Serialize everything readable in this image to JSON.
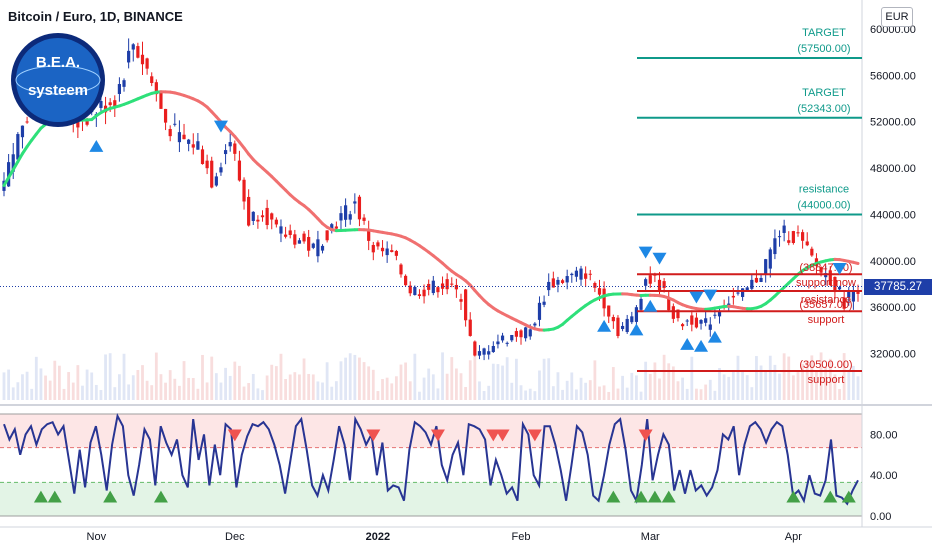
{
  "header": {
    "title": "Bitcoin / Euro, 1D, BINANCE",
    "currency_button": "EUR",
    "current_price_label": "37785.27"
  },
  "logo": {
    "line1": "B.E.A.",
    "line2": "systeem"
  },
  "colors": {
    "up": "#26a69a",
    "down": "#ef5350",
    "candle_up": "#1e3ea8",
    "candle_down": "#e91e1e",
    "ma_up": "#2ee07a",
    "ma_down": "#f07070",
    "target": "#0f9a8a",
    "support": "#d11c1c",
    "oscillator": "#283593"
  },
  "chart_data": {
    "type": "candlestick",
    "title": "Bitcoin / Euro, 1D, BINANCE",
    "price_axis": {
      "ticks": [
        60000,
        56000,
        52000,
        48000,
        44000,
        40000,
        36000,
        32000
      ],
      "tick_labels": [
        "60000.00",
        "56000.00",
        "52000.00",
        "48000.00",
        "44000.00",
        "40000.00",
        "36000.00",
        "32000.00"
      ],
      "range": [
        28000,
        62500
      ]
    },
    "time_axis": {
      "labels": [
        "Nov",
        "Dec",
        "2022",
        "Feb",
        "Mar",
        "Apr"
      ],
      "start": "2021-10-12",
      "end": "2022-04-15"
    },
    "close_path": [
      [
        "2021-10-12",
        46500
      ],
      [
        "2021-10-16",
        52000
      ],
      [
        "2021-10-20",
        55500
      ],
      [
        "2021-10-24",
        52500
      ],
      [
        "2021-10-28",
        52000
      ],
      [
        "2021-11-01",
        53000
      ],
      [
        "2021-11-05",
        54000
      ],
      [
        "2021-11-09",
        58800
      ],
      [
        "2021-11-12",
        56500
      ],
      [
        "2021-11-16",
        52000
      ],
      [
        "2021-11-19",
        50500
      ],
      [
        "2021-11-23",
        50000
      ],
      [
        "2021-11-26",
        47000
      ],
      [
        "2021-11-30",
        50500
      ],
      [
        "2021-12-04",
        43500
      ],
      [
        "2021-12-07",
        44500
      ],
      [
        "2021-12-10",
        42500
      ],
      [
        "2021-12-14",
        42000
      ],
      [
        "2021-12-18",
        41000
      ],
      [
        "2021-12-22",
        43000
      ],
      [
        "2021-12-27",
        45000
      ],
      [
        "2021-12-31",
        41000
      ],
      [
        "2022-01-04",
        40500
      ],
      [
        "2022-01-08",
        37500
      ],
      [
        "2022-01-11",
        37500
      ],
      [
        "2022-01-15",
        38000
      ],
      [
        "2022-01-19",
        37000
      ],
      [
        "2022-01-22",
        31500
      ],
      [
        "2022-01-26",
        33000
      ],
      [
        "2022-01-30",
        33500
      ],
      [
        "2022-02-03",
        34000
      ],
      [
        "2022-02-07",
        38000
      ],
      [
        "2022-02-11",
        38500
      ],
      [
        "2022-02-15",
        39000
      ],
      [
        "2022-02-19",
        36500
      ],
      [
        "2022-02-22",
        34000
      ],
      [
        "2022-02-25",
        35000
      ],
      [
        "2022-02-28",
        38500
      ],
      [
        "2022-03-03",
        38000
      ],
      [
        "2022-03-07",
        34500
      ],
      [
        "2022-03-10",
        35000
      ],
      [
        "2022-03-13",
        34500
      ],
      [
        "2022-03-17",
        36500
      ],
      [
        "2022-03-21",
        37000
      ],
      [
        "2022-03-25",
        39000
      ],
      [
        "2022-03-29",
        42500
      ],
      [
        "2022-04-02",
        42000
      ],
      [
        "2022-04-06",
        39500
      ],
      [
        "2022-04-09",
        38500
      ],
      [
        "2022-04-12",
        36500
      ],
      [
        "2022-04-15",
        37785
      ]
    ],
    "levels": [
      {
        "label": "TARGET",
        "value_label": "(57500.00)",
        "value": 57500,
        "kind": "target"
      },
      {
        "label": "TARGET",
        "value_label": "(52343.00)",
        "value": 52343,
        "kind": "target"
      },
      {
        "label": "resistance",
        "value_label": "(44000.00)",
        "value": 44000,
        "kind": "target"
      },
      {
        "label": "support now",
        "value_label": "(38847.00)",
        "value": 38847,
        "kind": "support"
      },
      {
        "label": "resistance",
        "value_label": "",
        "value": 37400,
        "kind": "support"
      },
      {
        "label": "support",
        "value_label": "(35657.00)",
        "value": 35657,
        "kind": "support"
      },
      {
        "label": "support",
        "value_label": "(30500.00)",
        "value": 30500,
        "kind": "support"
      }
    ],
    "oscillator": {
      "range": [
        0,
        100
      ],
      "ticks": [
        80,
        40,
        0
      ],
      "tick_labels": [
        "80.00",
        "40.00",
        "0.00"
      ],
      "overbought": 67,
      "oversold": 33,
      "values": [
        90,
        75,
        85,
        60,
        80,
        88,
        70,
        85,
        90,
        92,
        80,
        88,
        55,
        22,
        65,
        28,
        72,
        88,
        60,
        25,
        70,
        98,
        88,
        40,
        20,
        50,
        85,
        75,
        30,
        88,
        72,
        60,
        75,
        40,
        28,
        95,
        55,
        80,
        30,
        70,
        40,
        90,
        85,
        28,
        60,
        78,
        90,
        88,
        92,
        85,
        70,
        50,
        22,
        55,
        88,
        95,
        65,
        30,
        20,
        40,
        25,
        55,
        88,
        70,
        35,
        95,
        85,
        70,
        80,
        40,
        72,
        25,
        30,
        28,
        15,
        65,
        92,
        88,
        82,
        70,
        88,
        50,
        35,
        60,
        72,
        40,
        90,
        88,
        85,
        75,
        30,
        55,
        40,
        22,
        28,
        15,
        90,
        80,
        40,
        30,
        88,
        88,
        70,
        45,
        15,
        50,
        88,
        82,
        60,
        20,
        15,
        40,
        70,
        90,
        95,
        65,
        25,
        15,
        50,
        95,
        35,
        60,
        80,
        70,
        25,
        45,
        22,
        45,
        25,
        30,
        20,
        28,
        45,
        80,
        75,
        88,
        40,
        70,
        88,
        92,
        85,
        72,
        85,
        92,
        88,
        60,
        20,
        25,
        15,
        40,
        22,
        20,
        35,
        75,
        20,
        18,
        12,
        25,
        35
      ]
    },
    "signals_up_main": [
      "2021-11-01",
      "2022-02-19",
      "2022-02-26",
      "2022-03-01",
      "2022-03-09",
      "2022-03-12",
      "2022-03-15"
    ],
    "signals_down_main": [
      "2021-11-28",
      "2022-03-03",
      "2022-02-28",
      "2022-03-14",
      "2022-03-11",
      "2022-04-11"
    ],
    "signals_up_osc": [
      "2021-10-20",
      "2021-10-23",
      "2021-11-04",
      "2021-11-15",
      "2022-02-21",
      "2022-02-27",
      "2022-03-02",
      "2022-03-05",
      "2022-04-01",
      "2022-04-09",
      "2022-04-13"
    ],
    "signals_down_osc": [
      "2021-12-01",
      "2021-12-31",
      "2022-01-14",
      "2022-01-26",
      "2022-01-28",
      "2022-02-04",
      "2022-02-28"
    ]
  }
}
